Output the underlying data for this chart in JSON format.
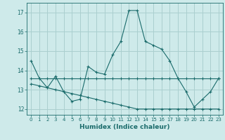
{
  "xlabel": "Humidex (Indice chaleur)",
  "background_color": "#ceeaea",
  "grid_color": "#aacfcf",
  "line_color": "#1a6b6b",
  "xlim": [
    -0.5,
    23.5
  ],
  "ylim": [
    11.7,
    17.5
  ],
  "yticks": [
    12,
    13,
    14,
    15,
    16,
    17
  ],
  "xticks": [
    0,
    1,
    2,
    3,
    4,
    5,
    6,
    7,
    8,
    9,
    10,
    11,
    12,
    13,
    14,
    15,
    16,
    17,
    18,
    19,
    20,
    21,
    22,
    23
  ],
  "series1_x": [
    0,
    1,
    2,
    3,
    4,
    5,
    6,
    7,
    8,
    9,
    10,
    11,
    12,
    13,
    14,
    15,
    16,
    17,
    18,
    19,
    20,
    21,
    22,
    23
  ],
  "series1_y": [
    14.5,
    13.6,
    13.1,
    13.7,
    12.9,
    12.4,
    12.5,
    14.2,
    13.9,
    13.8,
    14.8,
    15.5,
    17.1,
    17.1,
    15.5,
    15.3,
    15.1,
    14.5,
    13.6,
    12.9,
    12.1,
    12.5,
    12.9,
    13.6
  ],
  "series2_x": [
    0,
    1,
    2,
    3,
    4,
    5,
    6,
    7,
    8,
    9,
    10,
    11,
    12,
    13,
    14,
    15,
    16,
    17,
    18,
    19,
    20,
    21,
    22,
    23
  ],
  "series2_y": [
    13.6,
    13.6,
    13.6,
    13.6,
    13.6,
    13.6,
    13.6,
    13.6,
    13.6,
    13.6,
    13.6,
    13.6,
    13.6,
    13.6,
    13.6,
    13.6,
    13.6,
    13.6,
    13.6,
    13.6,
    13.6,
    13.6,
    13.6,
    13.6
  ],
  "series3_x": [
    0,
    1,
    2,
    3,
    4,
    5,
    6,
    7,
    8,
    9,
    10,
    11,
    12,
    13,
    14,
    15,
    16,
    17,
    18,
    19,
    20,
    21,
    22,
    23
  ],
  "series3_y": [
    13.3,
    13.2,
    13.1,
    13.0,
    12.9,
    12.8,
    12.7,
    12.6,
    12.5,
    12.4,
    12.3,
    12.2,
    12.1,
    12.0,
    12.0,
    12.0,
    12.0,
    12.0,
    12.0,
    12.0,
    12.0,
    12.0,
    12.0,
    12.0
  ]
}
